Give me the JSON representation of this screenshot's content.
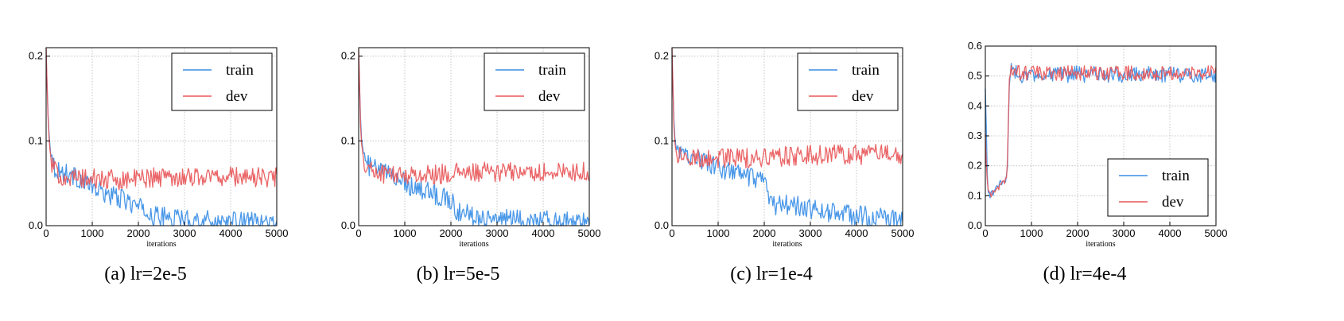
{
  "colors": {
    "train": "#3a8ee6",
    "dev": "#e8585a",
    "grid": "#b8b8b8",
    "axis": "#000000"
  },
  "chart_data": [
    {
      "type": "line",
      "caption": "(a) lr=2e-5",
      "xlabel": "iterations",
      "ylabel": "",
      "xlim": [
        0,
        5000
      ],
      "ylim": [
        0,
        0.21
      ],
      "xticks": [
        0,
        1000,
        2000,
        3000,
        4000,
        5000
      ],
      "xtick_labels": [
        "0",
        "1000",
        "2000",
        "3000",
        "4000",
        "5000"
      ],
      "yticks": [
        0,
        0.1,
        0.2
      ],
      "ytick_labels": [
        "0.0",
        "0.1",
        "0.2"
      ],
      "grid": true,
      "legend_position": "top-right",
      "series": [
        {
          "name": "train",
          "color": "#3a8ee6",
          "x": [
            0,
            50,
            100,
            150,
            200,
            300,
            400,
            500,
            600,
            700,
            800,
            900,
            1000,
            1100,
            1200,
            1300,
            1400,
            1500,
            1600,
            1700,
            1800,
            1900,
            2000,
            2100,
            2200,
            2300,
            2400,
            2500,
            2600,
            2700,
            2800,
            2900,
            3000,
            3100,
            3200,
            3300,
            3400,
            3500,
            3600,
            3700,
            3800,
            3900,
            4000,
            4100,
            4200,
            4300,
            4400,
            4500,
            4600,
            4700,
            4800,
            4900,
            5000
          ],
          "values": [
            0.2,
            0.12,
            0.085,
            0.072,
            0.068,
            0.064,
            0.062,
            0.062,
            0.058,
            0.056,
            0.052,
            0.05,
            0.045,
            0.042,
            0.04,
            0.038,
            0.036,
            0.034,
            0.032,
            0.03,
            0.028,
            0.025,
            0.022,
            0.018,
            0.015,
            0.012,
            0.011,
            0.01,
            0.01,
            0.009,
            0.009,
            0.008,
            0.008,
            0.008,
            0.007,
            0.007,
            0.006,
            0.006,
            0.006,
            0.005,
            0.005,
            0.005,
            0.005,
            0.004,
            0.004,
            0.004,
            0.004,
            0.004,
            0.004,
            0.003,
            0.003,
            0.003,
            0.003
          ]
        },
        {
          "name": "dev",
          "color": "#e8585a",
          "x": [
            0,
            50,
            100,
            150,
            200,
            300,
            400,
            500,
            600,
            700,
            800,
            900,
            1000,
            1100,
            1200,
            1300,
            1400,
            1500,
            1600,
            1700,
            1800,
            1900,
            2000,
            2100,
            2200,
            2300,
            2400,
            2500,
            2600,
            2700,
            2800,
            2900,
            3000,
            3100,
            3200,
            3300,
            3400,
            3500,
            3600,
            3700,
            3800,
            3900,
            4000,
            4100,
            4200,
            4300,
            4400,
            4500,
            4600,
            4700,
            4800,
            4900,
            5000
          ],
          "values": [
            0.21,
            0.11,
            0.08,
            0.068,
            0.063,
            0.06,
            0.058,
            0.057,
            0.056,
            0.056,
            0.055,
            0.055,
            0.055,
            0.055,
            0.054,
            0.054,
            0.054,
            0.054,
            0.054,
            0.055,
            0.055,
            0.055,
            0.056,
            0.056,
            0.057,
            0.057,
            0.057,
            0.058,
            0.058,
            0.058,
            0.058,
            0.058,
            0.058,
            0.058,
            0.058,
            0.058,
            0.058,
            0.058,
            0.058,
            0.058,
            0.058,
            0.058,
            0.058,
            0.058,
            0.058,
            0.058,
            0.058,
            0.057,
            0.057,
            0.057,
            0.057,
            0.057,
            0.057
          ]
        }
      ]
    },
    {
      "type": "line",
      "caption": "(b) lr=5e-5",
      "xlabel": "iterations",
      "ylabel": "",
      "xlim": [
        0,
        5000
      ],
      "ylim": [
        0,
        0.21
      ],
      "xticks": [
        0,
        1000,
        2000,
        3000,
        4000,
        5000
      ],
      "xtick_labels": [
        "0",
        "1000",
        "2000",
        "3000",
        "4000",
        "5000"
      ],
      "yticks": [
        0,
        0.1,
        0.2
      ],
      "ytick_labels": [
        "0.0",
        "0.1",
        "0.2"
      ],
      "grid": true,
      "legend_position": "top-right",
      "series": [
        {
          "name": "train",
          "color": "#3a8ee6",
          "x": [
            0,
            50,
            100,
            150,
            200,
            300,
            400,
            500,
            600,
            700,
            800,
            900,
            1000,
            1100,
            1200,
            1300,
            1400,
            1500,
            1600,
            1700,
            1800,
            1900,
            2000,
            2100,
            2200,
            2300,
            2400,
            2500,
            2600,
            2700,
            2800,
            2900,
            3000,
            3100,
            3200,
            3300,
            3400,
            3500,
            3600,
            3700,
            3800,
            3900,
            4000,
            4100,
            4200,
            4300,
            4400,
            4500,
            4600,
            4700,
            4800,
            4900,
            5000
          ],
          "values": [
            0.2,
            0.11,
            0.085,
            0.075,
            0.072,
            0.068,
            0.066,
            0.064,
            0.062,
            0.06,
            0.058,
            0.056,
            0.052,
            0.048,
            0.046,
            0.044,
            0.042,
            0.04,
            0.038,
            0.036,
            0.034,
            0.032,
            0.03,
            0.02,
            0.016,
            0.014,
            0.013,
            0.012,
            0.012,
            0.011,
            0.01,
            0.01,
            0.009,
            0.009,
            0.008,
            0.008,
            0.008,
            0.007,
            0.007,
            0.007,
            0.006,
            0.006,
            0.006,
            0.006,
            0.005,
            0.005,
            0.005,
            0.005,
            0.005,
            0.004,
            0.004,
            0.004,
            0.004
          ]
        },
        {
          "name": "dev",
          "color": "#e8585a",
          "x": [
            0,
            50,
            100,
            150,
            200,
            300,
            400,
            500,
            600,
            700,
            800,
            900,
            1000,
            1100,
            1200,
            1300,
            1400,
            1500,
            1600,
            1700,
            1800,
            1900,
            2000,
            2100,
            2200,
            2300,
            2400,
            2500,
            2600,
            2700,
            2800,
            2900,
            3000,
            3100,
            3200,
            3300,
            3400,
            3500,
            3600,
            3700,
            3800,
            3900,
            4000,
            4100,
            4200,
            4300,
            4400,
            4500,
            4600,
            4700,
            4800,
            4900,
            5000
          ],
          "values": [
            0.21,
            0.1,
            0.08,
            0.072,
            0.068,
            0.065,
            0.063,
            0.062,
            0.061,
            0.061,
            0.06,
            0.06,
            0.06,
            0.06,
            0.06,
            0.06,
            0.06,
            0.06,
            0.06,
            0.061,
            0.061,
            0.061,
            0.061,
            0.062,
            0.062,
            0.062,
            0.062,
            0.062,
            0.063,
            0.063,
            0.063,
            0.063,
            0.063,
            0.063,
            0.063,
            0.063,
            0.063,
            0.063,
            0.063,
            0.063,
            0.063,
            0.063,
            0.063,
            0.063,
            0.063,
            0.063,
            0.063,
            0.063,
            0.063,
            0.063,
            0.063,
            0.063,
            0.063
          ]
        }
      ]
    },
    {
      "type": "line",
      "caption": "(c) lr=1e-4",
      "xlabel": "iterations",
      "ylabel": "",
      "xlim": [
        0,
        5000
      ],
      "ylim": [
        0,
        0.21
      ],
      "xticks": [
        0,
        1000,
        2000,
        3000,
        4000,
        5000
      ],
      "xtick_labels": [
        "0",
        "1000",
        "2000",
        "3000",
        "4000",
        "5000"
      ],
      "yticks": [
        0,
        0.1,
        0.2
      ],
      "ytick_labels": [
        "0.0",
        "0.1",
        "0.2"
      ],
      "grid": true,
      "legend_position": "top-right",
      "series": [
        {
          "name": "train",
          "color": "#3a8ee6",
          "x": [
            0,
            50,
            100,
            150,
            200,
            300,
            400,
            500,
            600,
            700,
            800,
            900,
            1000,
            1100,
            1200,
            1300,
            1400,
            1500,
            1600,
            1700,
            1800,
            1900,
            2000,
            2100,
            2200,
            2300,
            2400,
            2500,
            2600,
            2700,
            2800,
            2900,
            3000,
            3100,
            3200,
            3300,
            3400,
            3500,
            3600,
            3700,
            3800,
            3900,
            4000,
            4100,
            4200,
            4300,
            4400,
            4500,
            4600,
            4700,
            4800,
            4900,
            5000
          ],
          "values": [
            0.2,
            0.11,
            0.09,
            0.085,
            0.083,
            0.082,
            0.082,
            0.082,
            0.08,
            0.076,
            0.072,
            0.07,
            0.068,
            0.066,
            0.065,
            0.064,
            0.062,
            0.06,
            0.058,
            0.056,
            0.054,
            0.052,
            0.05,
            0.03,
            0.025,
            0.024,
            0.024,
            0.025,
            0.024,
            0.023,
            0.022,
            0.021,
            0.02,
            0.019,
            0.018,
            0.017,
            0.016,
            0.016,
            0.015,
            0.014,
            0.014,
            0.013,
            0.012,
            0.012,
            0.011,
            0.01,
            0.01,
            0.009,
            0.009,
            0.008,
            0.008,
            0.007,
            0.007
          ]
        },
        {
          "name": "dev",
          "color": "#e8585a",
          "x": [
            0,
            50,
            100,
            150,
            200,
            300,
            400,
            500,
            600,
            700,
            800,
            900,
            1000,
            1100,
            1200,
            1300,
            1400,
            1500,
            1600,
            1700,
            1800,
            1900,
            2000,
            2100,
            2200,
            2300,
            2400,
            2500,
            2600,
            2700,
            2800,
            2900,
            3000,
            3100,
            3200,
            3300,
            3400,
            3500,
            3600,
            3700,
            3800,
            3900,
            4000,
            4100,
            4200,
            4300,
            4400,
            4500,
            4600,
            4700,
            4800,
            4900,
            5000
          ],
          "values": [
            0.21,
            0.1,
            0.085,
            0.082,
            0.08,
            0.08,
            0.08,
            0.08,
            0.08,
            0.08,
            0.08,
            0.08,
            0.08,
            0.08,
            0.08,
            0.08,
            0.08,
            0.08,
            0.08,
            0.08,
            0.08,
            0.08,
            0.08,
            0.081,
            0.081,
            0.081,
            0.082,
            0.082,
            0.082,
            0.082,
            0.083,
            0.083,
            0.083,
            0.083,
            0.083,
            0.083,
            0.084,
            0.084,
            0.084,
            0.084,
            0.084,
            0.084,
            0.084,
            0.084,
            0.084,
            0.085,
            0.085,
            0.085,
            0.085,
            0.085,
            0.085,
            0.085,
            0.085
          ]
        }
      ]
    },
    {
      "type": "line",
      "caption": "(d) lr=4e-4",
      "xlabel": "iterations",
      "ylabel": "",
      "xlim": [
        0,
        5000
      ],
      "ylim": [
        0,
        0.6
      ],
      "xticks": [
        0,
        1000,
        2000,
        3000,
        4000,
        5000
      ],
      "xtick_labels": [
        "0",
        "1000",
        "2000",
        "3000",
        "4000",
        "5000"
      ],
      "yticks": [
        0,
        0.1,
        0.2,
        0.3,
        0.4,
        0.5,
        0.6
      ],
      "ytick_labels": [
        "0.0",
        "0.1",
        "0.2",
        "0.3",
        "0.4",
        "0.5",
        "0.6"
      ],
      "grid": true,
      "legend_position": "bottom-right",
      "series": [
        {
          "name": "train",
          "color": "#3a8ee6",
          "x": [
            0,
            25,
            50,
            100,
            150,
            200,
            250,
            300,
            350,
            400,
            450,
            480,
            520,
            560,
            600,
            700,
            800,
            900,
            1000,
            1200,
            1400,
            1600,
            1800,
            2000,
            2200,
            2400,
            2600,
            2800,
            3000,
            3200,
            3400,
            3600,
            3800,
            4000,
            4200,
            4400,
            4600,
            4800,
            5000
          ],
          "values": [
            0.45,
            0.3,
            0.12,
            0.1,
            0.11,
            0.12,
            0.13,
            0.14,
            0.14,
            0.14,
            0.15,
            0.2,
            0.48,
            0.52,
            0.51,
            0.51,
            0.5,
            0.51,
            0.5,
            0.51,
            0.5,
            0.51,
            0.5,
            0.51,
            0.5,
            0.51,
            0.5,
            0.51,
            0.5,
            0.51,
            0.5,
            0.51,
            0.5,
            0.51,
            0.5,
            0.51,
            0.5,
            0.51,
            0.5
          ]
        },
        {
          "name": "dev",
          "color": "#e8585a",
          "x": [
            0,
            25,
            50,
            100,
            150,
            200,
            250,
            300,
            350,
            400,
            450,
            480,
            520,
            560,
            600,
            700,
            800,
            900,
            1000,
            1200,
            1400,
            1600,
            1800,
            2000,
            2200,
            2400,
            2600,
            2800,
            3000,
            3200,
            3400,
            3600,
            3800,
            4000,
            4200,
            4400,
            4600,
            4800,
            5000
          ],
          "values": [
            0.3,
            0.2,
            0.11,
            0.1,
            0.11,
            0.12,
            0.13,
            0.13,
            0.14,
            0.14,
            0.15,
            0.22,
            0.49,
            0.51,
            0.51,
            0.51,
            0.51,
            0.51,
            0.51,
            0.51,
            0.51,
            0.51,
            0.51,
            0.51,
            0.51,
            0.51,
            0.51,
            0.51,
            0.51,
            0.51,
            0.51,
            0.51,
            0.51,
            0.51,
            0.51,
            0.51,
            0.51,
            0.51,
            0.51
          ]
        }
      ]
    }
  ]
}
